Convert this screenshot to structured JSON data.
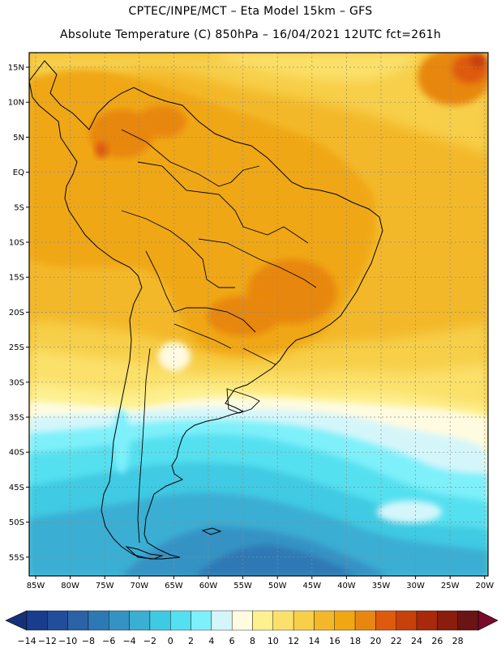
{
  "header": {
    "line1": "CPTEC/INPE/MCT –  Eta Model 15km – GFS",
    "line2": "Absolute Temperature (C) 850hPa – 16/04/2021 12UTC fct=261h"
  },
  "map": {
    "variable": "Absolute Temperature",
    "units": "C",
    "level": "850hPa",
    "lat_ticks": [
      "15N",
      "10N",
      "5N",
      "EQ",
      "5S",
      "10S",
      "15S",
      "20S",
      "25S",
      "30S",
      "35S",
      "40S",
      "45S",
      "50S",
      "55S"
    ],
    "lon_ticks": [
      "85W",
      "80W",
      "75W",
      "70W",
      "65W",
      "60W",
      "55W",
      "50W",
      "45W",
      "40W",
      "35W",
      "30W",
      "25W",
      "20W"
    ],
    "bands": [
      {
        "range": "24-26",
        "color": "#c8400a"
      },
      {
        "range": "22-24",
        "color": "#de5a0c"
      },
      {
        "range": "20-22",
        "color": "#e8870f"
      },
      {
        "range": "18-20",
        "color": "#f0a712"
      },
      {
        "range": "16-18",
        "color": "#f3b829"
      },
      {
        "range": "14-16",
        "color": "#f7cf48"
      },
      {
        "range": "12-14",
        "color": "#fbe06b"
      },
      {
        "range": "10-12",
        "color": "#fdf08f"
      },
      {
        "range": "8-10",
        "color": "#fffbe0"
      },
      {
        "range": "6-8",
        "color": "#fdf2d6"
      },
      {
        "range": "4-6",
        "color": "#d4f6fb"
      },
      {
        "range": "2-4",
        "color": "#7ef0fa"
      },
      {
        "range": "0-2",
        "color": "#54e0f0"
      },
      {
        "range": "-2-0",
        "color": "#3fcae3"
      },
      {
        "range": "-4--2",
        "color": "#3aaed3"
      },
      {
        "range": "-6--4",
        "color": "#3493c4"
      },
      {
        "range": "-8--6",
        "color": "#2d79b5"
      },
      {
        "range": "-10--8",
        "color": "#2a63a6"
      }
    ]
  },
  "colorbar": {
    "labels": [
      "-14",
      "-12",
      "-10",
      "-8",
      "-6",
      "-4",
      "-2",
      "0",
      "2",
      "4",
      "6",
      "8",
      "10",
      "12",
      "14",
      "16",
      "18",
      "20",
      "22",
      "24",
      "26",
      "28"
    ],
    "colors": [
      "#1a3c8c",
      "#224d9a",
      "#2a63a6",
      "#2d79b5",
      "#3493c4",
      "#3aaed3",
      "#3fcae3",
      "#54e0f0",
      "#7ef0fa",
      "#d4f6fb",
      "#fffbe0",
      "#fdf08f",
      "#fbe06b",
      "#f7cf48",
      "#f3b829",
      "#f0a712",
      "#e8870f",
      "#de5a0c",
      "#c8400a",
      "#a82a0a",
      "#8b1d0c",
      "#6a1414"
    ],
    "left_arrow_color": "#16307a",
    "right_arrow_color": "#7a0a2a"
  }
}
